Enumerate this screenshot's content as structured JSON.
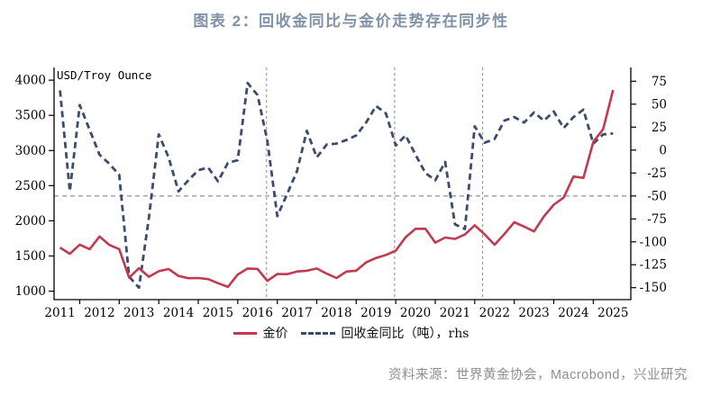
{
  "title": "图表 2：回收金同比与金价走势存在同步性",
  "source": "资料来源：世界黄金协会，Macrobond，兴业研究",
  "colors": {
    "title": "#8092aa",
    "gold_line": "#c23a50",
    "recycled_line": "#3d4b6e",
    "grid": "#8a8a8a",
    "axis": "#000000",
    "source_text": "#8f8f8f"
  },
  "legend": [
    {
      "label": "金价",
      "color": "#c23a50",
      "style": "solid"
    },
    {
      "label": "回收金同比（吨），rhs",
      "color": "#3d4b6e",
      "style": "dashed"
    }
  ],
  "chart_data": {
    "type": "line",
    "title": "图表 2：回收金同比与金价走势存在同步性",
    "unit_label": "USD/Troy Ounce",
    "x_domain": [
      2011.35,
      2025.95
    ],
    "x_start": 2011.5,
    "x_step": 0.25,
    "x_ticks": [
      2012,
      2013,
      2014,
      2015,
      2016,
      2017,
      2018,
      2019,
      2020,
      2021,
      2022,
      2023,
      2024,
      2025
    ],
    "x_labels": [
      "2011",
      "2012",
      "2013",
      "2014",
      "2015",
      "2016",
      "2017",
      "2018",
      "2019",
      "2020",
      "2021",
      "2022",
      "2023",
      "2024",
      "2025"
    ],
    "x_label_center_start": 2011.5,
    "left_axis": {
      "title": "USD/Troy Ounce",
      "ticks": [
        1000,
        1500,
        2000,
        2500,
        3000,
        3500,
        4000
      ],
      "range": [
        880,
        4180
      ]
    },
    "right_axis": {
      "ticks": [
        75,
        50,
        25,
        0,
        -25,
        -50,
        -75,
        -100,
        -125,
        -150
      ],
      "range": [
        -163,
        90
      ]
    },
    "hline_right": -50,
    "vlines_x": [
      2016.73,
      2019.97,
      2022.2
    ],
    "grid": "partial-dashed",
    "legend_position": "bottom-center",
    "series": [
      {
        "name": "金价",
        "axis": "left",
        "color": "#c23a50",
        "dash": false,
        "frequency": "quarterly, 2011Q3–2025Q3",
        "values": [
          1620,
          1531,
          1662,
          1598,
          1776,
          1658,
          1598,
          1192,
          1327,
          1205,
          1284,
          1315,
          1217,
          1184,
          1187,
          1171,
          1114,
          1060,
          1237,
          1322,
          1316,
          1146,
          1245,
          1242,
          1280,
          1291,
          1323,
          1250,
          1187,
          1279,
          1292,
          1409,
          1472,
          1515,
          1577,
          1768,
          1886,
          1888,
          1691,
          1763,
          1743,
          1806,
          1937,
          1807,
          1660,
          1812,
          1980,
          1919,
          1849,
          2063,
          2230,
          2331,
          2630,
          2611,
          3124,
          3303,
          3859
        ]
      },
      {
        "name": "回收金同比（吨），rhs",
        "axis": "right",
        "color": "#3d4b6e",
        "dash": true,
        "frequency": "quarterly, 2011Q3–2025Q3",
        "values": [
          65,
          -45,
          49,
          22,
          -5,
          -15,
          -27,
          -138,
          -150,
          -74,
          17,
          -8,
          -45,
          -33,
          -22,
          -19,
          -34,
          -14,
          -11,
          73,
          60,
          10,
          -72,
          -48,
          -23,
          21,
          -8,
          6,
          7,
          11,
          16,
          30,
          48,
          40,
          5,
          16,
          -5,
          -25,
          -33,
          -13,
          -81,
          -86,
          26,
          8,
          12,
          32,
          36,
          30,
          41,
          32,
          42,
          24,
          36,
          44,
          7,
          17,
          18
        ]
      }
    ]
  }
}
